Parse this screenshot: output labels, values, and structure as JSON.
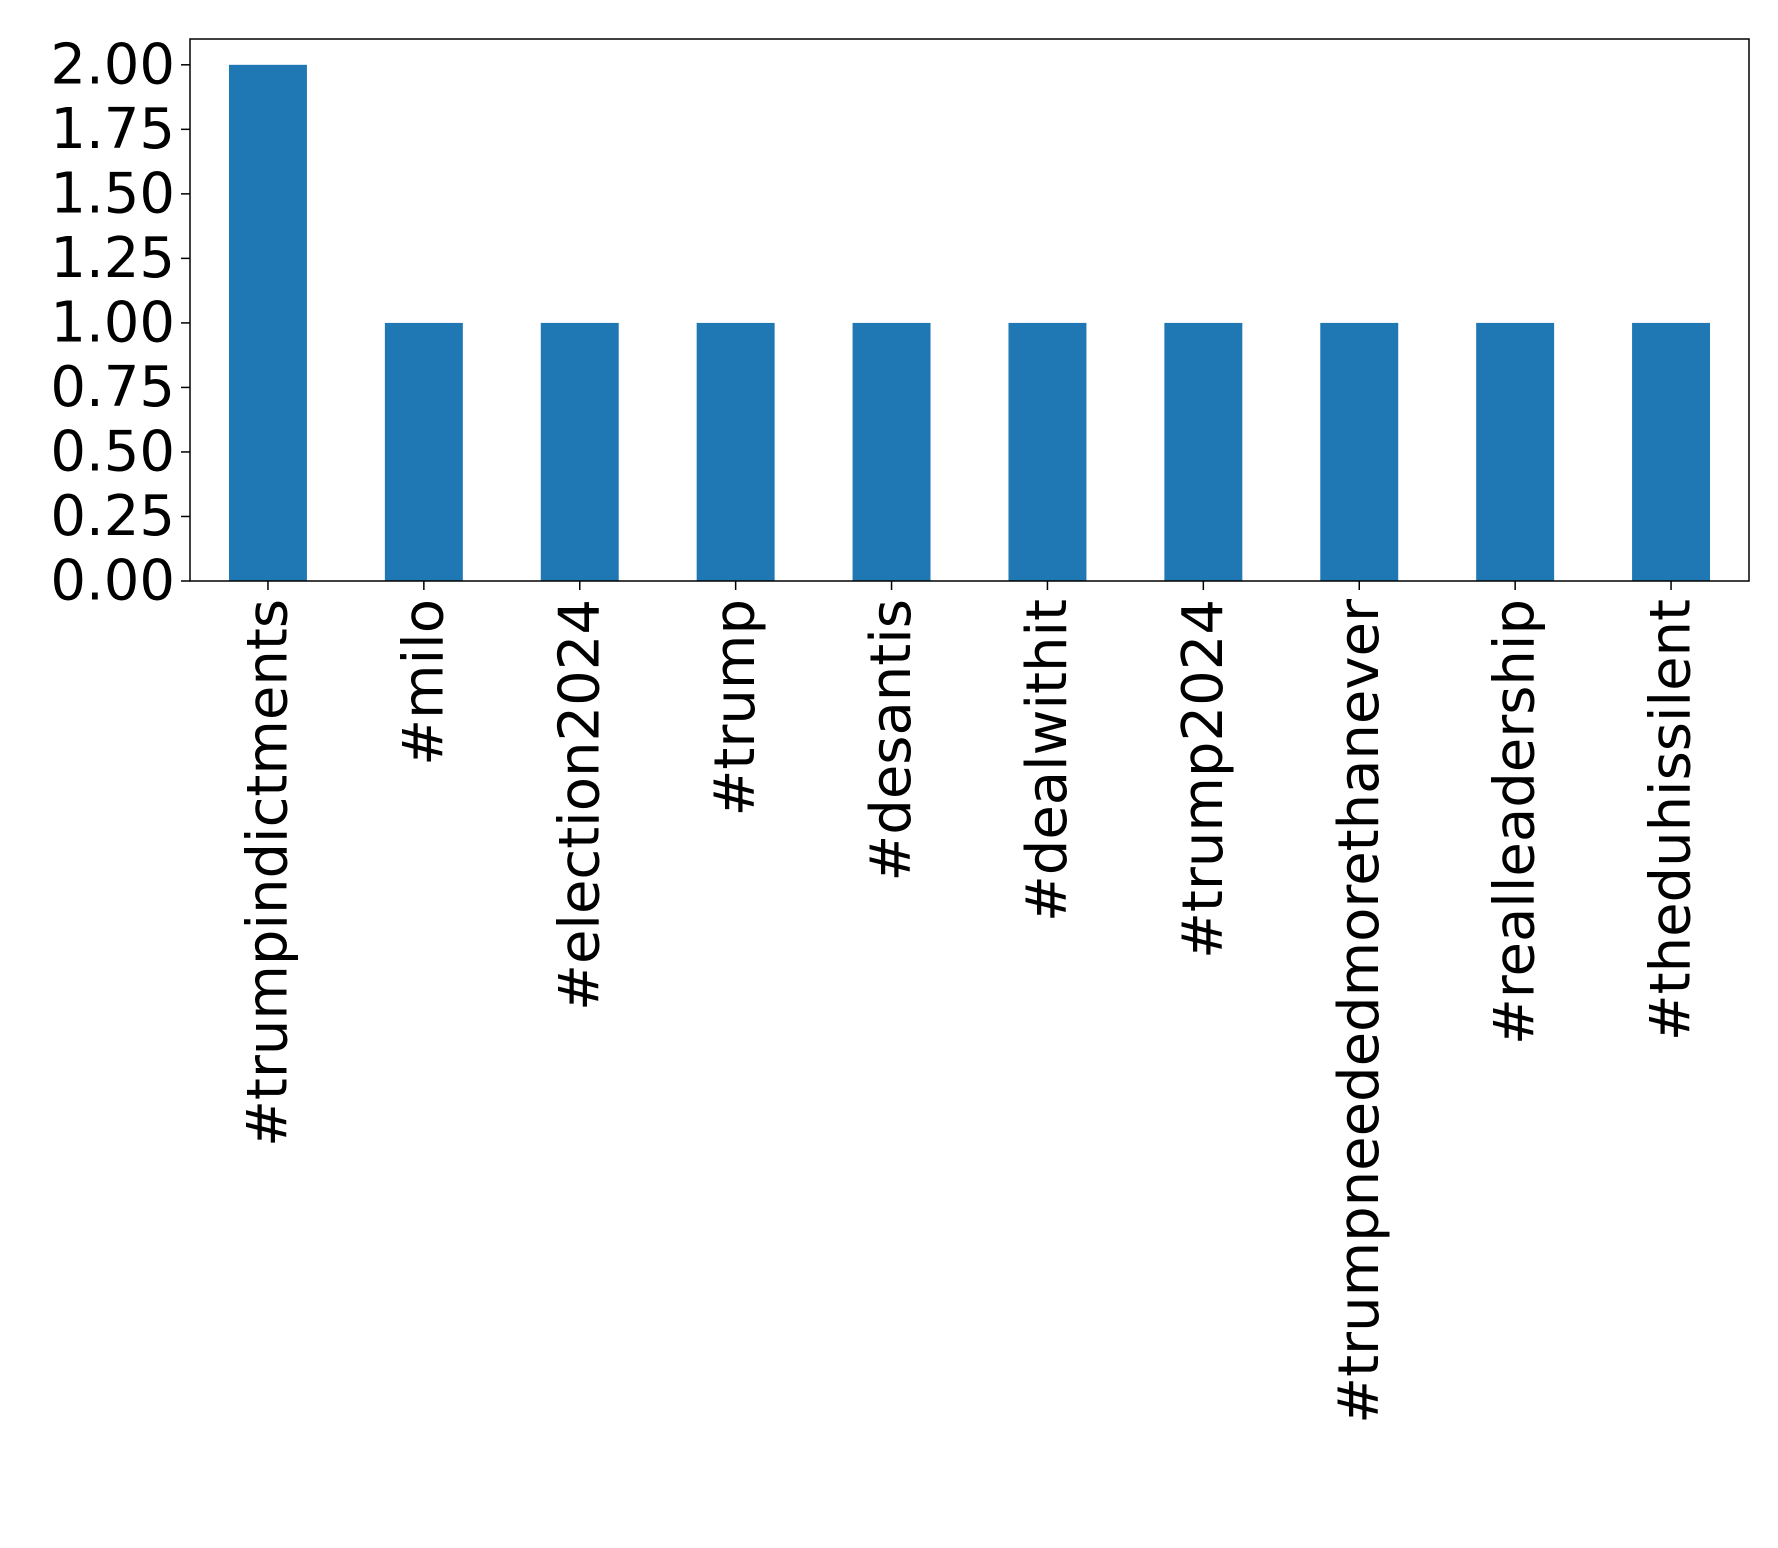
{
  "chart_data": {
    "type": "bar",
    "title": "",
    "xlabel": "",
    "ylabel": "",
    "categories": [
      "#trumpindictments",
      "#milo",
      "#election2024",
      "#trump",
      "#desantis",
      "#dealwithit",
      "#trump2024",
      "#trumpneededmorethanever",
      "#realleadership",
      "#theduhissilent"
    ],
    "values": [
      2,
      1,
      1,
      1,
      1,
      1,
      1,
      1,
      1,
      1
    ],
    "ylim": [
      0,
      2.1
    ],
    "yticks": [
      "0.00",
      "0.25",
      "0.50",
      "0.75",
      "1.00",
      "1.25",
      "1.50",
      "1.75",
      "2.00"
    ],
    "grid": false,
    "legend": "none",
    "bar_color": "#1f77b4"
  }
}
